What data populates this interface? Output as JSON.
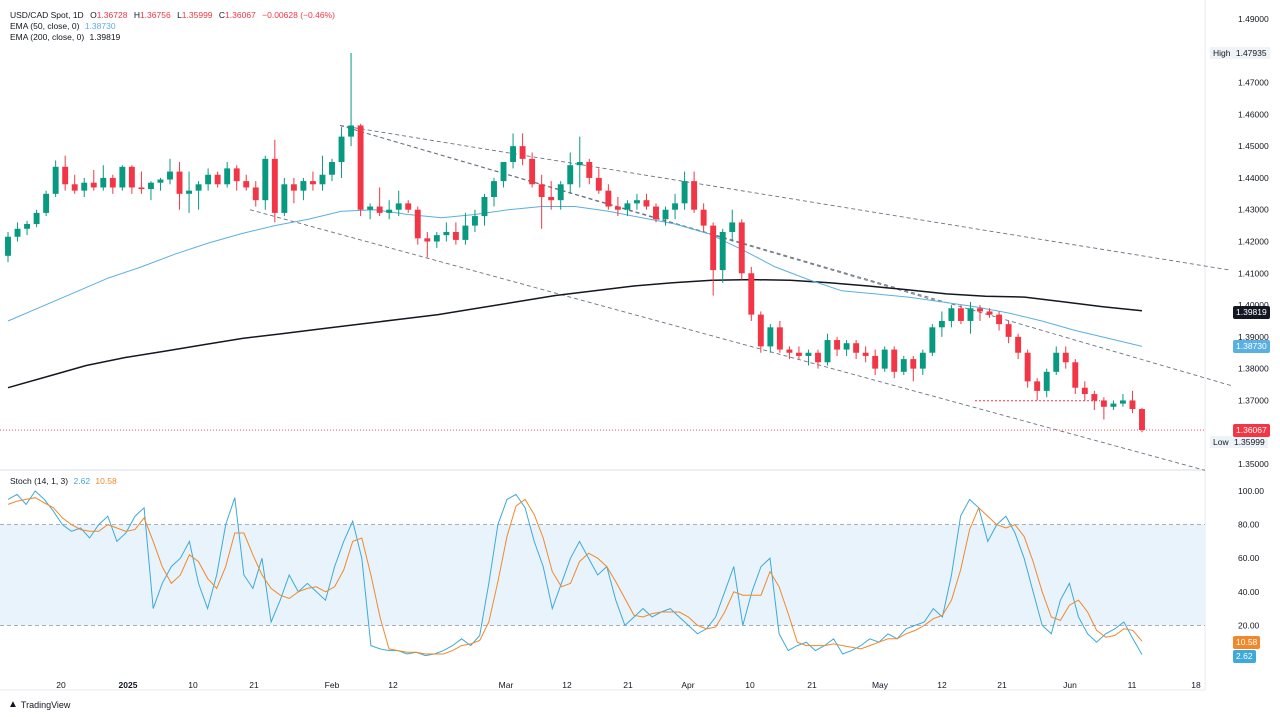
{
  "header": {
    "symbol": "USD/CAD Spot, 1D",
    "o_label": "O",
    "o": "1.36728",
    "h_label": "H",
    "h": "1.36756",
    "l_label": "L",
    "l": "1.35999",
    "c_label": "C",
    "c": "1.36067",
    "change": "−0.00628 (−0.46%)",
    "ema50_label": "EMA (50, close, 0)",
    "ema50_value": "1.38730",
    "ema200_label": "EMA (200, close, 0)",
    "ema200_value": "1.39819"
  },
  "markers": {
    "high_label": "High",
    "high_value": "1.47935",
    "low_label": "Low",
    "low_value": "1.35999",
    "last_price": "1.36067",
    "ema200_badge": "1.39819",
    "ema50_badge": "1.38730",
    "stoch_k_badge": "2.62",
    "stoch_d_badge": "10.58"
  },
  "stoch_header": {
    "label": "Stoch (14, 1, 3)",
    "k": "2.62",
    "d": "10.58"
  },
  "brand": "TradingView",
  "colors": {
    "up": "#089981",
    "down": "#f23645",
    "ema50": "#5ab0e0",
    "ema200": "#131722",
    "stoch_k": "#3fa9d9",
    "stoch_d": "#f0892b",
    "stoch_band": "#e8f3fb"
  },
  "chart_data": [
    {
      "type": "candlestick",
      "title": "USD/CAD Spot, 1D",
      "x_tick_labels": [
        "20",
        "2025",
        "10",
        "21",
        "Feb",
        "12",
        "Mar",
        "12",
        "21",
        "Apr",
        "10",
        "21",
        "May",
        "12",
        "21",
        "Jun",
        "11",
        "18"
      ],
      "y_tick_labels": [
        "1.49000",
        "1.48000",
        "1.47000",
        "1.46000",
        "1.45000",
        "1.44000",
        "1.43000",
        "1.42000",
        "1.41000",
        "1.40000",
        "1.39000",
        "1.38000",
        "1.37000",
        "1.36000",
        "1.35000"
      ],
      "ylim": [
        1.347,
        1.494
      ],
      "ohlc": [
        [
          1.4155,
          1.423,
          1.4135,
          1.4215
        ],
        [
          1.4215,
          1.426,
          1.42,
          1.424
        ],
        [
          1.424,
          1.4265,
          1.422,
          1.4255
        ],
        [
          1.4255,
          1.43,
          1.4245,
          1.429
        ],
        [
          1.429,
          1.436,
          1.428,
          1.435
        ],
        [
          1.435,
          1.4455,
          1.434,
          1.4435
        ],
        [
          1.4435,
          1.447,
          1.436,
          1.438
        ],
        [
          1.438,
          1.441,
          1.435,
          1.436
        ],
        [
          1.436,
          1.44,
          1.434,
          1.4385
        ],
        [
          1.4385,
          1.4425,
          1.436,
          1.437
        ],
        [
          1.437,
          1.444,
          1.436,
          1.44
        ],
        [
          1.44,
          1.441,
          1.435,
          1.437
        ],
        [
          1.437,
          1.444,
          1.436,
          1.4435
        ],
        [
          1.4435,
          1.444,
          1.435,
          1.437
        ],
        [
          1.437,
          1.442,
          1.435,
          1.4365
        ],
        [
          1.4365,
          1.439,
          1.433,
          1.4385
        ],
        [
          1.4385,
          1.44,
          1.436,
          1.4395
        ],
        [
          1.4395,
          1.446,
          1.438,
          1.442
        ],
        [
          1.442,
          1.445,
          1.43,
          1.435
        ],
        [
          1.435,
          1.442,
          1.429,
          1.436
        ],
        [
          1.436,
          1.439,
          1.43,
          1.438
        ],
        [
          1.438,
          1.443,
          1.436,
          1.441
        ],
        [
          1.441,
          1.442,
          1.437,
          1.438
        ],
        [
          1.438,
          1.445,
          1.437,
          1.443
        ],
        [
          1.443,
          1.444,
          1.436,
          1.439
        ],
        [
          1.439,
          1.441,
          1.436,
          1.437
        ],
        [
          1.437,
          1.439,
          1.431,
          1.433
        ],
        [
          1.433,
          1.447,
          1.43,
          1.446
        ],
        [
          1.446,
          1.452,
          1.426,
          1.429
        ],
        [
          1.429,
          1.44,
          1.428,
          1.438
        ],
        [
          1.438,
          1.44,
          1.432,
          1.436
        ],
        [
          1.436,
          1.44,
          1.433,
          1.439
        ],
        [
          1.439,
          1.442,
          1.436,
          1.438
        ],
        [
          1.438,
          1.447,
          1.436,
          1.441
        ],
        [
          1.441,
          1.446,
          1.439,
          1.445
        ],
        [
          1.445,
          1.456,
          1.44,
          1.453
        ],
        [
          1.453,
          1.4793,
          1.45,
          1.4565
        ],
        [
          1.4565,
          1.457,
          1.428,
          1.43
        ],
        [
          1.43,
          1.432,
          1.427,
          1.431
        ],
        [
          1.431,
          1.437,
          1.428,
          1.429
        ],
        [
          1.429,
          1.433,
          1.427,
          1.43
        ],
        [
          1.43,
          1.436,
          1.428,
          1.432
        ],
        [
          1.432,
          1.433,
          1.429,
          1.43
        ],
        [
          1.43,
          1.431,
          1.419,
          1.421
        ],
        [
          1.421,
          1.423,
          1.415,
          1.42
        ],
        [
          1.42,
          1.423,
          1.418,
          1.422
        ],
        [
          1.422,
          1.426,
          1.42,
          1.423
        ],
        [
          1.423,
          1.426,
          1.419,
          1.4205
        ],
        [
          1.4205,
          1.429,
          1.419,
          1.425
        ],
        [
          1.425,
          1.43,
          1.423,
          1.428
        ],
        [
          1.428,
          1.435,
          1.425,
          1.434
        ],
        [
          1.434,
          1.44,
          1.431,
          1.439
        ],
        [
          1.439,
          1.445,
          1.437,
          1.445
        ],
        [
          1.445,
          1.454,
          1.443,
          1.45
        ],
        [
          1.45,
          1.454,
          1.444,
          1.446
        ],
        [
          1.446,
          1.448,
          1.437,
          1.438
        ],
        [
          1.438,
          1.441,
          1.424,
          1.434
        ],
        [
          1.434,
          1.439,
          1.43,
          1.433
        ],
        [
          1.433,
          1.439,
          1.43,
          1.438
        ],
        [
          1.438,
          1.448,
          1.435,
          1.444
        ],
        [
          1.444,
          1.453,
          1.437,
          1.445
        ],
        [
          1.445,
          1.446,
          1.438,
          1.44
        ],
        [
          1.44,
          1.443,
          1.435,
          1.436
        ],
        [
          1.436,
          1.438,
          1.43,
          1.431
        ],
        [
          1.431,
          1.434,
          1.428,
          1.43
        ],
        [
          1.43,
          1.433,
          1.428,
          1.432
        ],
        [
          1.432,
          1.435,
          1.43,
          1.433
        ],
        [
          1.433,
          1.435,
          1.43,
          1.431
        ],
        [
          1.431,
          1.432,
          1.426,
          1.427
        ],
        [
          1.427,
          1.431,
          1.425,
          1.43
        ],
        [
          1.43,
          1.435,
          1.427,
          1.432
        ],
        [
          1.432,
          1.442,
          1.43,
          1.439
        ],
        [
          1.439,
          1.442,
          1.429,
          1.43
        ],
        [
          1.43,
          1.432,
          1.423,
          1.425
        ],
        [
          1.425,
          1.426,
          1.403,
          1.411
        ],
        [
          1.411,
          1.424,
          1.407,
          1.423
        ],
        [
          1.423,
          1.43,
          1.42,
          1.426
        ],
        [
          1.426,
          1.427,
          1.408,
          1.41
        ],
        [
          1.41,
          1.412,
          1.395,
          1.397
        ],
        [
          1.397,
          1.398,
          1.385,
          1.387
        ],
        [
          1.387,
          1.394,
          1.385,
          1.393
        ],
        [
          1.393,
          1.395,
          1.385,
          1.386
        ],
        [
          1.386,
          1.387,
          1.383,
          1.385
        ],
        [
          1.385,
          1.387,
          1.383,
          1.384
        ],
        [
          1.384,
          1.386,
          1.381,
          1.385
        ],
        [
          1.385,
          1.386,
          1.38,
          1.382
        ],
        [
          1.382,
          1.391,
          1.381,
          1.389
        ],
        [
          1.389,
          1.39,
          1.384,
          1.386
        ],
        [
          1.386,
          1.389,
          1.384,
          1.388
        ],
        [
          1.388,
          1.389,
          1.383,
          1.385
        ],
        [
          1.385,
          1.387,
          1.382,
          1.384
        ],
        [
          1.384,
          1.386,
          1.378,
          1.38
        ],
        [
          1.38,
          1.387,
          1.379,
          1.386
        ],
        [
          1.386,
          1.387,
          1.377,
          1.379
        ],
        [
          1.379,
          1.384,
          1.378,
          1.383
        ],
        [
          1.383,
          1.384,
          1.376,
          1.38
        ],
        [
          1.38,
          1.386,
          1.378,
          1.385
        ],
        [
          1.385,
          1.394,
          1.384,
          1.393
        ],
        [
          1.393,
          1.398,
          1.39,
          1.395
        ],
        [
          1.395,
          1.4,
          1.393,
          1.399
        ],
        [
          1.399,
          1.4,
          1.394,
          1.395
        ],
        [
          1.395,
          1.401,
          1.391,
          1.399
        ],
        [
          1.399,
          1.4,
          1.395,
          1.398
        ],
        [
          1.398,
          1.399,
          1.396,
          1.397
        ],
        [
          1.397,
          1.398,
          1.392,
          1.394
        ],
        [
          1.394,
          1.395,
          1.388,
          1.39
        ],
        [
          1.39,
          1.391,
          1.383,
          1.385
        ],
        [
          1.385,
          1.386,
          1.374,
          1.376
        ],
        [
          1.376,
          1.377,
          1.37,
          1.373
        ],
        [
          1.373,
          1.38,
          1.371,
          1.379
        ],
        [
          1.379,
          1.387,
          1.378,
          1.385
        ],
        [
          1.385,
          1.387,
          1.38,
          1.382
        ],
        [
          1.382,
          1.383,
          1.372,
          1.374
        ],
        [
          1.374,
          1.376,
          1.37,
          1.372
        ],
        [
          1.372,
          1.373,
          1.367,
          1.37
        ],
        [
          1.37,
          1.371,
          1.364,
          1.368
        ],
        [
          1.368,
          1.37,
          1.367,
          1.369
        ],
        [
          1.369,
          1.372,
          1.368,
          1.37
        ],
        [
          1.37,
          1.373,
          1.366,
          1.3673
        ],
        [
          1.3673,
          1.3676,
          1.36,
          1.3607
        ]
      ],
      "ema50": [
        1.395,
        1.3995,
        1.404,
        1.4085,
        1.412,
        1.416,
        1.4195,
        1.4225,
        1.425,
        1.427,
        1.4295,
        1.43,
        1.4285,
        1.4275,
        1.4285,
        1.43,
        1.431,
        1.431,
        1.4295,
        1.4275,
        1.4255,
        1.4225,
        1.4175,
        1.412,
        1.408,
        1.4045,
        1.4035,
        1.4025,
        1.401,
        1.3995,
        1.3975,
        1.395,
        1.392,
        1.3895,
        1.387
      ],
      "ema200": [
        1.374,
        1.3775,
        1.381,
        1.3835,
        1.3855,
        1.3875,
        1.3895,
        1.391,
        1.3925,
        1.394,
        1.3955,
        1.397,
        1.399,
        1.401,
        1.403,
        1.4045,
        1.406,
        1.407,
        1.4078,
        1.408,
        1.4078,
        1.407,
        1.406,
        1.4048,
        1.4035,
        1.4028,
        1.4025,
        1.401,
        1.3995,
        1.3982
      ],
      "lines": [
        "descending channel upper",
        "descending channel lower",
        "descending channel mid",
        "upper dashed trendline",
        "red dotted support 1.36990"
      ]
    },
    {
      "type": "line",
      "title": "Stoch (14, 1, 3)",
      "y_tick_labels": [
        "100.00",
        "80.00",
        "60.00",
        "40.00",
        "20.00",
        "0.00"
      ],
      "ylim": [
        0,
        100
      ],
      "band": [
        20,
        80
      ],
      "series": [
        {
          "name": "%K",
          "values": [
            95,
            98,
            92,
            100,
            95,
            88,
            80,
            76,
            78,
            72,
            80,
            85,
            70,
            75,
            85,
            90,
            30,
            45,
            55,
            60,
            70,
            45,
            30,
            50,
            80,
            96,
            50,
            42,
            60,
            22,
            35,
            50,
            40,
            45,
            40,
            35,
            55,
            70,
            82,
            60,
            8,
            6,
            5,
            5,
            3,
            4,
            2,
            3,
            5,
            8,
            12,
            8,
            14,
            45,
            80,
            95,
            98,
            90,
            70,
            55,
            30,
            45,
            60,
            70,
            60,
            50,
            55,
            35,
            20,
            25,
            30,
            25,
            28,
            30,
            25,
            20,
            15,
            18,
            25,
            40,
            55,
            20,
            40,
            55,
            60,
            15,
            5,
            8,
            10,
            5,
            8,
            12,
            3,
            5,
            8,
            12,
            10,
            15,
            12,
            18,
            20,
            22,
            30,
            25,
            50,
            85,
            95,
            90,
            70,
            80,
            85,
            75,
            60,
            40,
            20,
            15,
            35,
            45,
            25,
            15,
            10,
            15,
            18,
            22,
            12,
            2.62
          ]
        },
        {
          "name": "%D",
          "values": [
            92,
            94,
            95,
            96,
            93,
            90,
            84,
            80,
            77,
            76,
            76,
            80,
            78,
            76,
            77,
            84,
            70,
            55,
            45,
            50,
            62,
            58,
            48,
            42,
            55,
            75,
            75,
            62,
            50,
            42,
            38,
            36,
            40,
            42,
            43,
            40,
            43,
            53,
            70,
            72,
            50,
            25,
            6,
            5,
            4,
            4,
            3,
            3,
            3,
            5,
            8,
            9,
            11,
            22,
            46,
            73,
            91,
            95,
            86,
            72,
            52,
            43,
            45,
            58,
            63,
            60,
            55,
            46,
            36,
            26,
            25,
            27,
            28,
            28,
            28,
            25,
            20,
            18,
            19,
            28,
            40,
            38,
            38,
            38,
            52,
            43,
            27,
            10,
            8,
            8,
            8,
            9,
            8,
            7,
            6,
            8,
            10,
            12,
            12,
            15,
            17,
            20,
            24,
            26,
            35,
            53,
            77,
            90,
            85,
            80,
            78,
            80,
            73,
            58,
            40,
            25,
            23,
            32,
            35,
            28,
            17,
            13,
            14,
            18,
            17,
            10.58
          ]
        }
      ]
    }
  ]
}
